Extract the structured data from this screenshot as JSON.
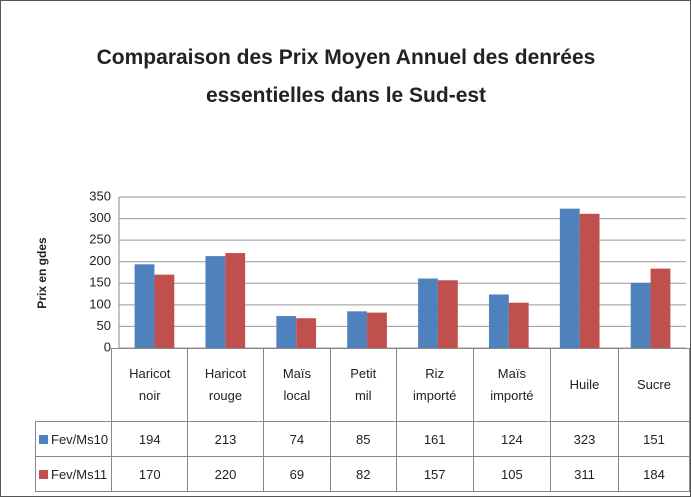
{
  "chart_data": {
    "type": "bar",
    "title": "Comparaison des Prix Moyen Annuel des denrées essentielles dans le Sud-est",
    "y_label": "Prix en gdes",
    "categories": [
      "Haricot noir",
      "Haricot rouge",
      "Maïs local",
      "Petit mil",
      "Riz importé",
      "Maïs importé",
      "Huile",
      "Sucre"
    ],
    "series": [
      {
        "name": "Fev/Ms10",
        "color": "#4f81bd",
        "values": [
          194,
          213,
          74,
          85,
          161,
          124,
          323,
          151
        ]
      },
      {
        "name": "Fev/Ms11",
        "color": "#c0504d",
        "values": [
          170,
          220,
          69,
          82,
          157,
          105,
          311,
          184
        ]
      }
    ],
    "ylim": [
      0,
      350
    ],
    "yticks": [
      0,
      50,
      100,
      150,
      200,
      250,
      300,
      350
    ],
    "grid": true
  }
}
